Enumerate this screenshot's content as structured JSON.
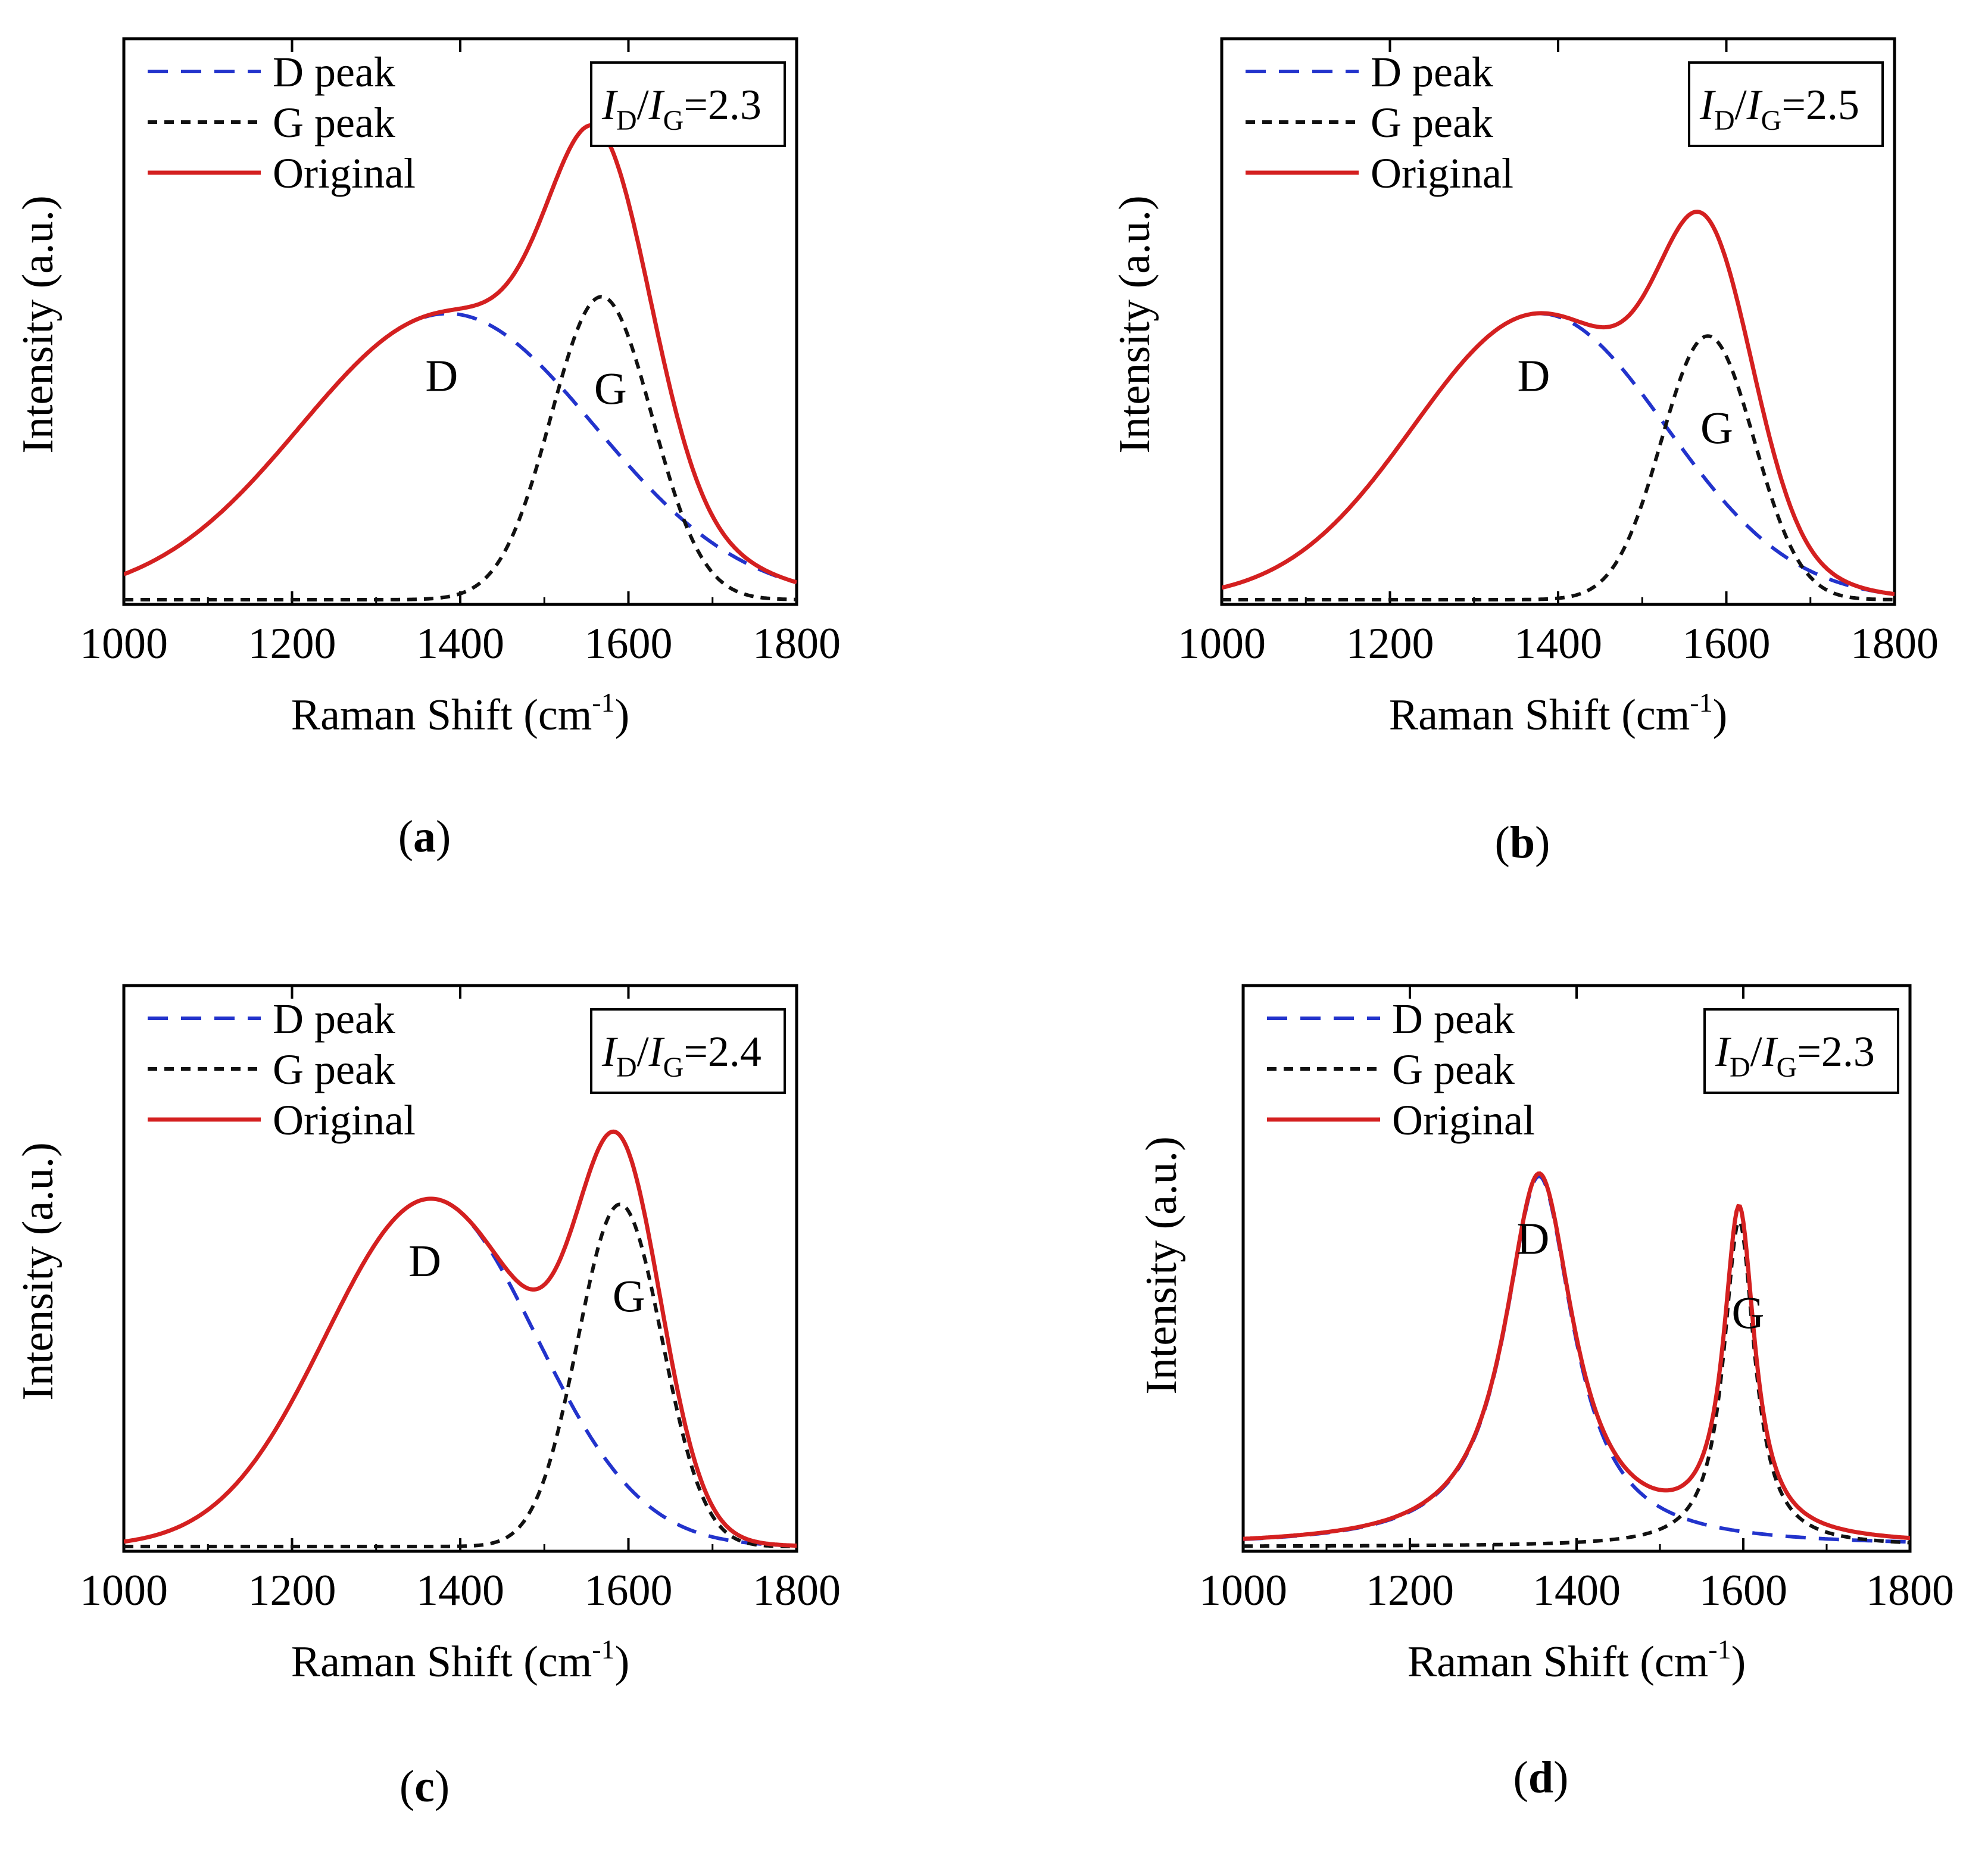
{
  "figure": {
    "panels": [
      {
        "id": "a",
        "caption": "a",
        "legend": {
          "d_peak": "D peak",
          "g_peak": "G peak",
          "original": "Original"
        },
        "ratio": {
          "i": "I",
          "d_sub": "D",
          "slash": "/",
          "g_sub": "G",
          "value": "=2.3"
        },
        "xlabel": {
          "main": "Raman Shift (cm",
          "sup": "-1",
          "end": ")"
        },
        "ylabel": "Intensity (a.u.)",
        "peak_labels": [
          "D",
          "G"
        ]
      },
      {
        "id": "b",
        "caption": "b",
        "legend": {
          "d_peak": "D peak",
          "g_peak": "G peak",
          "original": "Original"
        },
        "ratio": {
          "i": "I",
          "d_sub": "D",
          "slash": "/",
          "g_sub": "G",
          "value": "=2.5"
        },
        "xlabel": {
          "main": "Raman Shift (cm",
          "sup": "-1",
          "end": ")"
        },
        "ylabel": "Intensity (a.u.)",
        "peak_labels": [
          "D",
          "G"
        ]
      },
      {
        "id": "c",
        "caption": "c",
        "legend": {
          "d_peak": "D peak",
          "g_peak": "G peak",
          "original": "Original"
        },
        "ratio": {
          "i": "I",
          "d_sub": "D",
          "slash": "/",
          "g_sub": "G",
          "value": "=2.4"
        },
        "xlabel": {
          "main": "Raman Shift (cm",
          "sup": "-1",
          "end": ")"
        },
        "ylabel": "Intensity (a.u.)",
        "peak_labels": [
          "D",
          "G"
        ]
      },
      {
        "id": "d",
        "caption": "d",
        "legend": {
          "d_peak": "D peak",
          "g_peak": "G peak",
          "original": "Original"
        },
        "ratio": {
          "i": "I",
          "d_sub": "D",
          "slash": "/",
          "g_sub": "G",
          "value": "=2.3"
        },
        "xlabel": {
          "main": "Raman Shift (cm",
          "sup": "-1",
          "end": ")"
        },
        "ylabel": "Intensity (a.u.)",
        "peak_labels": [
          "D",
          "G"
        ]
      }
    ]
  },
  "colors": {
    "d_peak": "#2233cc",
    "g_peak": "#111111",
    "original": "#d42020",
    "axis": "#000000"
  },
  "chart_data": [
    {
      "panel": "a",
      "type": "line",
      "xlabel": "Raman Shift (cm-1)",
      "ylabel": "Intensity (a.u.)",
      "xlim": [
        1000,
        1800
      ],
      "ylim": [
        0,
        1.0
      ],
      "xticks": [
        "1000",
        "1200",
        "1400",
        "1600",
        "1800"
      ],
      "annotation": "ID/IG=2.3",
      "peaks": {
        "D": {
          "center": 1385,
          "height": 0.51,
          "width": 175,
          "shape": "gaussian"
        },
        "G": {
          "center": 1568,
          "height": 0.54,
          "width": 60,
          "shape": "gaussian"
        }
      },
      "series": [
        "D peak",
        "G peak",
        "Original"
      ]
    },
    {
      "panel": "b",
      "type": "line",
      "xlabel": "Raman Shift (cm-1)",
      "ylabel": "Intensity (a.u.)",
      "xlim": [
        1000,
        1800
      ],
      "ylim": [
        0,
        1.0
      ],
      "xticks": [
        "1000",
        "1200",
        "1400",
        "1600",
        "1800"
      ],
      "annotation": "ID/IG=2.5",
      "peaks": {
        "D": {
          "center": 1378,
          "height": 0.51,
          "width": 150,
          "shape": "gaussian"
        },
        "G": {
          "center": 1578,
          "height": 0.47,
          "width": 55,
          "shape": "gaussian"
        }
      },
      "series": [
        "D peak",
        "G peak",
        "Original"
      ]
    },
    {
      "panel": "c",
      "type": "line",
      "xlabel": "Raman Shift (cm-1)",
      "ylabel": "Intensity (a.u.)",
      "xlim": [
        1000,
        1800
      ],
      "ylim": [
        0,
        1.0
      ],
      "xticks": [
        "1000",
        "1200",
        "1400",
        "1600",
        "1800"
      ],
      "annotation": "ID/IG=2.4",
      "peaks": {
        "D": {
          "center": 1365,
          "height": 0.62,
          "width": 125,
          "shape": "gaussian"
        },
        "G": {
          "center": 1590,
          "height": 0.61,
          "width": 50,
          "shape": "gaussian"
        }
      },
      "series": [
        "D peak",
        "G peak",
        "Original"
      ]
    },
    {
      "panel": "d",
      "type": "line",
      "xlabel": "Raman Shift (cm-1)",
      "ylabel": "Intensity (a.u.)",
      "xlim": [
        1000,
        1800
      ],
      "ylim": [
        0,
        1.0
      ],
      "xticks": [
        "1000",
        "1200",
        "1400",
        "1600",
        "1800"
      ],
      "annotation": "ID/IG=2.3",
      "peaks": {
        "D": {
          "center": 1355,
          "height": 0.66,
          "width": 100,
          "shape": "lorentzian"
        },
        "G": {
          "center": 1595,
          "height": 0.58,
          "width": 45,
          "shape": "lorentzian"
        }
      },
      "series": [
        "D peak",
        "G peak",
        "Original"
      ]
    }
  ]
}
